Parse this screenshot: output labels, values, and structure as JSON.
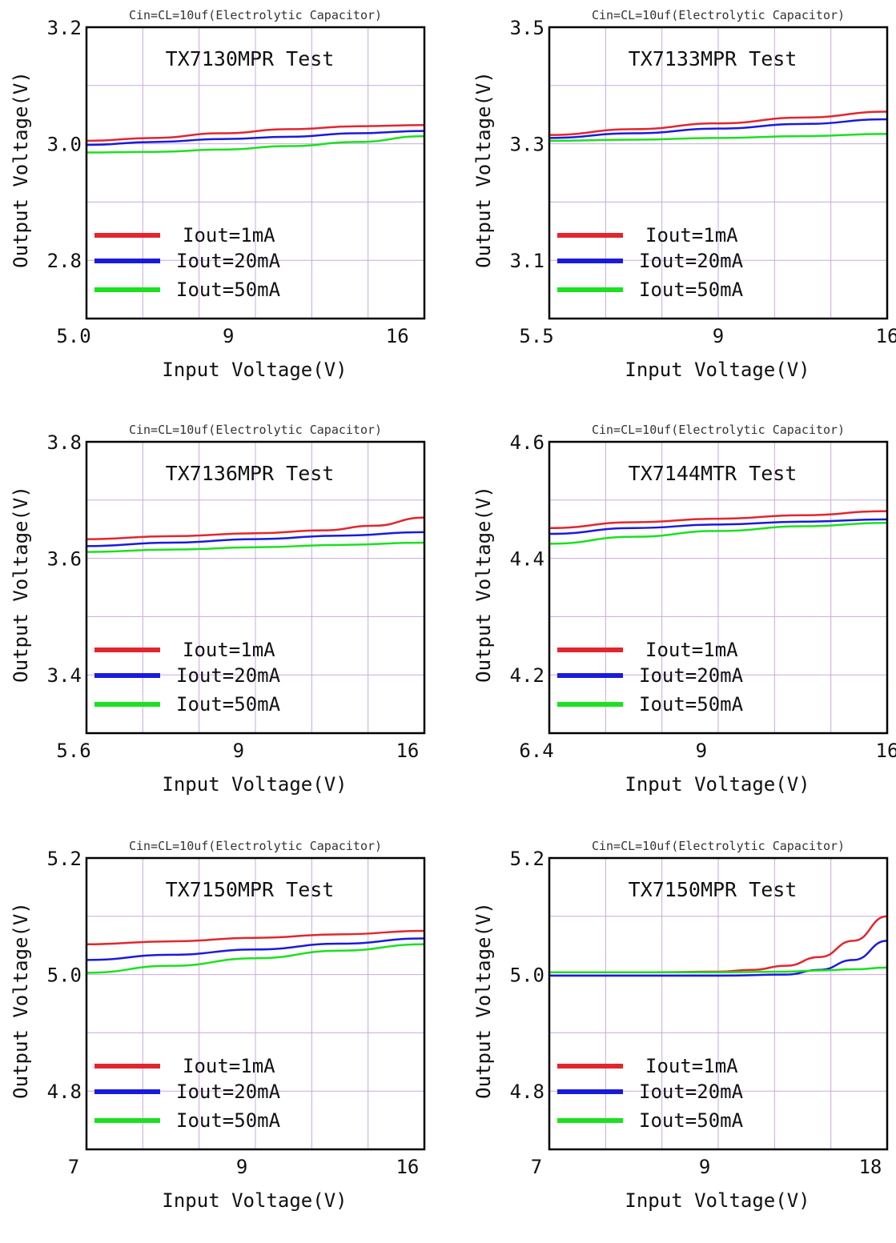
{
  "colors": {
    "grid": "#c9a8e0",
    "red": "#e3262e",
    "blue": "#1a1adf",
    "green": "#1be11e"
  },
  "chart_data": [
    {
      "type": "line",
      "annotation": "Cin=CL=10uf(Electrolytic Capacitor)",
      "title": "TX7130MPR Test",
      "xlabel": "Input Voltage(V)",
      "ylabel": "Output Voltage(V)",
      "x_ticks": [
        "5.0",
        "9",
        "16"
      ],
      "y_ticks": [
        "3.2",
        "3.0",
        "2.8"
      ],
      "ylim": [
        2.7,
        3.2
      ],
      "x_pos": [
        0,
        0.42,
        0.92
      ],
      "grid": true,
      "legend": "bottom-left",
      "series": [
        {
          "name": "Iout=1mA",
          "color": "red",
          "points": [
            [
              0,
              3.005
            ],
            [
              0.2,
              3.01
            ],
            [
              0.4,
              3.018
            ],
            [
              0.6,
              3.025
            ],
            [
              0.8,
              3.03
            ],
            [
              1.0,
              3.032
            ]
          ]
        },
        {
          "name": "Iout=20mA",
          "color": "blue",
          "points": [
            [
              0,
              2.998
            ],
            [
              0.2,
              3.003
            ],
            [
              0.4,
              3.008
            ],
            [
              0.6,
              3.012
            ],
            [
              0.8,
              3.018
            ],
            [
              1.0,
              3.022
            ]
          ]
        },
        {
          "name": "Iout=50mA",
          "color": "green",
          "points": [
            [
              0,
              2.985
            ],
            [
              0.2,
              2.986
            ],
            [
              0.4,
              2.99
            ],
            [
              0.6,
              2.996
            ],
            [
              0.8,
              3.003
            ],
            [
              1.0,
              3.013
            ]
          ]
        }
      ]
    },
    {
      "type": "line",
      "annotation": "Cin=CL=10uf(Electrolytic Capacitor)",
      "title": "TX7133MPR Test",
      "xlabel": "Input Voltage(V)",
      "ylabel": "Output Voltage(V)",
      "x_ticks": [
        "5.5",
        "9",
        "16"
      ],
      "y_ticks": [
        "3.5",
        "3.3",
        "3.1"
      ],
      "ylim": [
        3.0,
        3.5
      ],
      "x_pos": [
        0,
        0.5,
        1.0
      ],
      "grid": true,
      "legend": "bottom-left",
      "series": [
        {
          "name": "Iout=1mA",
          "color": "red",
          "points": [
            [
              0,
              3.315
            ],
            [
              0.25,
              3.325
            ],
            [
              0.5,
              3.335
            ],
            [
              0.75,
              3.345
            ],
            [
              1.0,
              3.355
            ]
          ]
        },
        {
          "name": "Iout=20mA",
          "color": "blue",
          "points": [
            [
              0,
              3.31
            ],
            [
              0.25,
              3.318
            ],
            [
              0.5,
              3.326
            ],
            [
              0.75,
              3.334
            ],
            [
              1.0,
              3.342
            ]
          ]
        },
        {
          "name": "Iout=50mA",
          "color": "green",
          "points": [
            [
              0,
              3.305
            ],
            [
              0.25,
              3.307
            ],
            [
              0.5,
              3.31
            ],
            [
              0.75,
              3.313
            ],
            [
              1.0,
              3.317
            ]
          ]
        }
      ]
    },
    {
      "type": "line",
      "annotation": "Cin=CL=10uf(Electrolytic Capacitor)",
      "title": "TX7136MPR Test",
      "xlabel": "Input Voltage(V)",
      "ylabel": "Output Voltage(V)",
      "x_ticks": [
        "5.6",
        "9",
        "16"
      ],
      "y_ticks": [
        "3.8",
        "3.6",
        "3.4"
      ],
      "ylim": [
        3.3,
        3.8
      ],
      "x_pos": [
        0,
        0.45,
        0.95
      ],
      "grid": true,
      "legend": "bottom-left",
      "series": [
        {
          "name": "Iout=1mA",
          "color": "red",
          "points": [
            [
              0,
              3.633
            ],
            [
              0.25,
              3.638
            ],
            [
              0.5,
              3.643
            ],
            [
              0.7,
              3.648
            ],
            [
              0.85,
              3.656
            ],
            [
              1.0,
              3.67
            ]
          ]
        },
        {
          "name": "Iout=20mA",
          "color": "blue",
          "points": [
            [
              0,
              3.621
            ],
            [
              0.25,
              3.627
            ],
            [
              0.5,
              3.633
            ],
            [
              0.75,
              3.639
            ],
            [
              1.0,
              3.645
            ]
          ]
        },
        {
          "name": "Iout=50mA",
          "color": "green",
          "points": [
            [
              0,
              3.611
            ],
            [
              0.25,
              3.615
            ],
            [
              0.5,
              3.619
            ],
            [
              0.75,
              3.623
            ],
            [
              1.0,
              3.627
            ]
          ]
        }
      ]
    },
    {
      "type": "line",
      "annotation": "Cin=CL=10uf(Electrolytic Capacitor)",
      "title": "TX7144MTR Test",
      "xlabel": "Input Voltage(V)",
      "ylabel": "Output Voltage(V)",
      "x_ticks": [
        "6.4",
        "9",
        "16"
      ],
      "y_ticks": [
        "4.6",
        "4.4",
        "4.2"
      ],
      "ylim": [
        4.1,
        4.6
      ],
      "x_pos": [
        0,
        0.45,
        1.0
      ],
      "grid": true,
      "legend": "bottom-left",
      "series": [
        {
          "name": "Iout=1mA",
          "color": "red",
          "points": [
            [
              0,
              4.452
            ],
            [
              0.25,
              4.462
            ],
            [
              0.5,
              4.468
            ],
            [
              0.75,
              4.474
            ],
            [
              1.0,
              4.481
            ]
          ]
        },
        {
          "name": "Iout=20mA",
          "color": "blue",
          "points": [
            [
              0,
              4.442
            ],
            [
              0.25,
              4.452
            ],
            [
              0.5,
              4.458
            ],
            [
              0.75,
              4.463
            ],
            [
              1.0,
              4.467
            ]
          ]
        },
        {
          "name": "Iout=50mA",
          "color": "green",
          "points": [
            [
              0,
              4.425
            ],
            [
              0.25,
              4.437
            ],
            [
              0.5,
              4.447
            ],
            [
              0.75,
              4.455
            ],
            [
              1.0,
              4.461
            ]
          ]
        }
      ]
    },
    {
      "type": "line",
      "annotation": "Cin=CL=10uf(Electrolytic Capacitor)",
      "title": "TX7150MPR Test",
      "xlabel": "Input Voltage(V)",
      "ylabel": "Output Voltage(V)",
      "x_ticks": [
        "7",
        "9",
        "16"
      ],
      "y_ticks": [
        "5.2",
        "5.0",
        "4.8"
      ],
      "ylim": [
        4.7,
        5.2
      ],
      "x_pos": [
        0,
        0.46,
        0.95
      ],
      "grid": true,
      "legend": "bottom-left",
      "series": [
        {
          "name": "Iout=1mA",
          "color": "red",
          "points": [
            [
              0,
              5.052
            ],
            [
              0.25,
              5.057
            ],
            [
              0.5,
              5.063
            ],
            [
              0.75,
              5.069
            ],
            [
              1.0,
              5.075
            ]
          ]
        },
        {
          "name": "Iout=20mA",
          "color": "blue",
          "points": [
            [
              0,
              5.025
            ],
            [
              0.25,
              5.034
            ],
            [
              0.5,
              5.043
            ],
            [
              0.75,
              5.053
            ],
            [
              1.0,
              5.062
            ]
          ]
        },
        {
          "name": "Iout=50mA",
          "color": "green",
          "points": [
            [
              0,
              5.003
            ],
            [
              0.25,
              5.015
            ],
            [
              0.5,
              5.028
            ],
            [
              0.75,
              5.041
            ],
            [
              1.0,
              5.052
            ]
          ]
        }
      ]
    },
    {
      "type": "line",
      "annotation": "Cin=CL=10uf(Electrolytic Capacitor)",
      "title": "TX7150MPR Test",
      "xlabel": "Input Voltage(V)",
      "ylabel": "Output Voltage(V)",
      "x_ticks": [
        "7",
        "9",
        "18"
      ],
      "y_ticks": [
        "5.2",
        "5.0",
        "4.8"
      ],
      "ylim": [
        4.7,
        5.2
      ],
      "x_pos": [
        0,
        0.46,
        0.95
      ],
      "grid": true,
      "legend": "bottom-left",
      "series": [
        {
          "name": "Iout=1mA",
          "color": "red",
          "points": [
            [
              0,
              5.004
            ],
            [
              0.3,
              5.004
            ],
            [
              0.5,
              5.005
            ],
            [
              0.6,
              5.008
            ],
            [
              0.7,
              5.015
            ],
            [
              0.8,
              5.03
            ],
            [
              0.9,
              5.058
            ],
            [
              1.0,
              5.1
            ]
          ]
        },
        {
          "name": "Iout=20mA",
          "color": "blue",
          "points": [
            [
              0,
              4.998
            ],
            [
              0.3,
              4.998
            ],
            [
              0.5,
              4.998
            ],
            [
              0.7,
              5.0
            ],
            [
              0.8,
              5.008
            ],
            [
              0.9,
              5.025
            ],
            [
              1.0,
              5.058
            ]
          ]
        },
        {
          "name": "Iout=50mA",
          "color": "green",
          "points": [
            [
              0,
              5.004
            ],
            [
              0.3,
              5.004
            ],
            [
              0.5,
              5.004
            ],
            [
              0.7,
              5.005
            ],
            [
              0.8,
              5.007
            ],
            [
              0.9,
              5.009
            ],
            [
              1.0,
              5.012
            ]
          ]
        }
      ]
    }
  ]
}
